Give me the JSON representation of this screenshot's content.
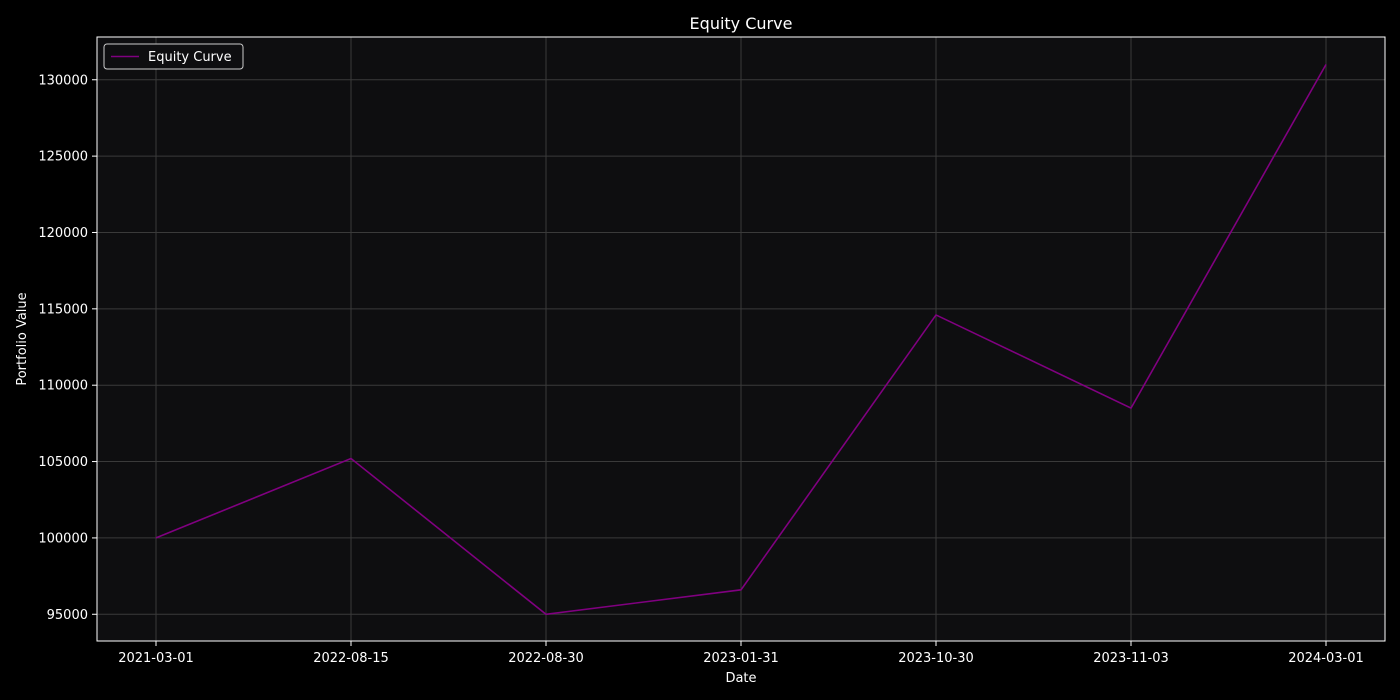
{
  "chart_data": {
    "type": "line",
    "title": "Equity Curve",
    "xlabel": "Date",
    "ylabel": "Portfolio Value",
    "categories": [
      "2021-03-01",
      "2022-08-15",
      "2022-08-30",
      "2023-01-31",
      "2023-10-30",
      "2023-11-03",
      "2024-03-01"
    ],
    "series": [
      {
        "name": "Equity Curve",
        "color": "#800080",
        "values": [
          100000,
          105200,
          95000,
          96600,
          114600,
          108500,
          131000
        ]
      }
    ],
    "yticks": [
      95000,
      100000,
      105000,
      110000,
      115000,
      120000,
      125000,
      130000
    ],
    "ylim": [
      93250,
      132800
    ],
    "grid": true,
    "legend": "top-left",
    "colors": {
      "figure_background": "#000000",
      "plot_background": "#0e0e10",
      "grid": "#3a3a3a",
      "axes": "#ffffff",
      "text": "#ffffff"
    }
  }
}
